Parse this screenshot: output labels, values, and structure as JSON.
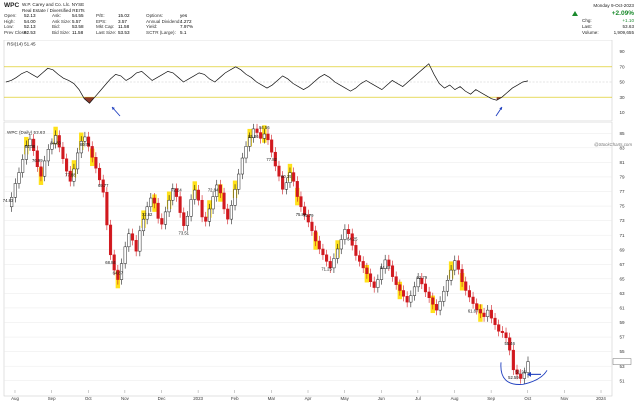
{
  "header": {
    "ticker": "WPC",
    "company": "W.P. Carey and Co. Llc. NYSE",
    "sector": "Real Estate / Diversified REITs",
    "date": "Monday  9-Oct-2023",
    "quote_cols": [
      [
        [
          "Open:",
          "52.13"
        ],
        [
          "High:",
          "54.00"
        ],
        [
          "Low:",
          "52.13"
        ],
        [
          "Prev Close:",
          "52.53"
        ]
      ],
      [
        [
          "Ask:",
          "54.55"
        ],
        [
          "Ask Size:",
          "5.57"
        ],
        [
          "Bid:",
          "53.58"
        ],
        [
          "Bid Size:",
          "11.58"
        ]
      ],
      [
        [
          "P/E:",
          "15.02"
        ],
        [
          "EPS:",
          "3.57"
        ],
        [
          "Mkt Cap:",
          "11.58"
        ],
        [
          "Last Size:",
          "53.53"
        ]
      ],
      [
        [
          "Options:",
          "yes"
        ],
        [
          "Annual Dividend:",
          "4.272"
        ],
        [
          "Yield:",
          "7.97%"
        ],
        [
          "SCTR (Large):",
          "5.1"
        ]
      ]
    ],
    "change": {
      "pct": "+2.09%",
      "rows": [
        [
          "Chg:",
          "+1.10"
        ],
        [
          "Last:",
          "53.63"
        ],
        [
          "Volume:",
          "1,909,655"
        ]
      ]
    }
  },
  "watermark": "@StockCharts.com",
  "colors": {
    "up": "#1a8a2c",
    "down": "#d1181e",
    "rsi_line": "#111111",
    "overbought": "#d9c400",
    "oversold_fill": "#8b3a2c",
    "arrow": "#1f3fbf",
    "highlight": "#ffe11a",
    "gridline": "#e4e4e4"
  },
  "chart_data": [
    {
      "type": "line",
      "title": "RSI(14) 51.45",
      "ylim": [
        0,
        100
      ],
      "ticks": [
        "90",
        "70",
        "50",
        "30",
        "10"
      ],
      "tick_values": [
        90,
        70,
        50,
        30,
        10
      ],
      "levels": [
        70,
        50,
        30
      ],
      "x": [
        0,
        3,
        6,
        9,
        12,
        15,
        18,
        21,
        24,
        27,
        30,
        33,
        36,
        39,
        42,
        45,
        48,
        51,
        54,
        57,
        60,
        63,
        66,
        69,
        72,
        75,
        78,
        81,
        84,
        87,
        90,
        93,
        96,
        99,
        102,
        105,
        108,
        111,
        114,
        117,
        120,
        123,
        126,
        129,
        132,
        135,
        138,
        141,
        144,
        147,
        150,
        153,
        156,
        159,
        162,
        165,
        168,
        171,
        174,
        177,
        180,
        183,
        186,
        189,
        192,
        195,
        198,
        201,
        204,
        207,
        210,
        213,
        216,
        219,
        222,
        225,
        228,
        231,
        234,
        237,
        240,
        243,
        246,
        249,
        252,
        255,
        258,
        261,
        264,
        267,
        270,
        273,
        276,
        279,
        282,
        285,
        288,
        291,
        294,
        297,
        300
      ],
      "values": [
        50,
        52,
        56,
        61,
        64,
        60,
        56,
        62,
        68,
        66,
        60,
        55,
        52,
        48,
        40,
        28,
        22,
        30,
        38,
        46,
        54,
        60,
        58,
        52,
        56,
        62,
        64,
        58,
        52,
        56,
        60,
        64,
        62,
        56,
        50,
        54,
        58,
        62,
        60,
        54,
        50,
        56,
        62,
        66,
        70,
        66,
        60,
        56,
        50,
        46,
        42,
        46,
        52,
        58,
        54,
        48,
        44,
        40,
        44,
        50,
        56,
        60,
        56,
        50,
        46,
        42,
        38,
        42,
        48,
        52,
        48,
        44,
        40,
        46,
        52,
        48,
        44,
        50,
        56,
        62,
        68,
        74,
        60,
        48,
        42,
        46,
        40,
        44,
        38,
        34,
        40,
        36,
        32,
        28,
        26,
        30,
        36,
        42,
        46,
        50,
        51.45
      ],
      "oversold_zones": [
        [
          45,
          51
        ],
        [
          282,
          300
        ]
      ]
    },
    {
      "type": "candlestick",
      "title": "WPC (Daily) 53.63",
      "ylim": [
        50,
        86
      ],
      "ticks": [
        "85",
        "83",
        "81",
        "79",
        "77",
        "75",
        "73",
        "71",
        "69",
        "67",
        "65",
        "63",
        "61",
        "59",
        "57",
        "55",
        "53",
        "51"
      ],
      "tick_values": [
        85,
        83,
        81,
        79,
        77,
        75,
        73,
        71,
        69,
        67,
        65,
        63,
        61,
        59,
        57,
        55,
        53,
        51
      ],
      "x_labels": [
        "Aug",
        "Sep",
        "Oct",
        "Nov",
        "Dec",
        "2023",
        "Feb",
        "Mar",
        "Apr",
        "May",
        "Jun",
        "Jul",
        "Aug",
        "Sep",
        "Oct",
        "Nov",
        "2024"
      ],
      "x_label_pos": [
        6,
        26,
        46,
        66,
        86,
        106,
        126,
        146,
        166,
        186,
        206,
        226,
        246,
        266,
        286,
        306,
        326
      ],
      "closes": [
        74.9,
        76.2,
        78.1,
        79.6,
        81.4,
        83.3,
        84.2,
        82.6,
        80.4,
        79.1,
        81.2,
        82.8,
        83.6,
        84.7,
        83.1,
        81.5,
        79.8,
        78.4,
        80.1,
        82.3,
        83.9,
        84.5,
        83.2,
        81.7,
        80.2,
        78.6,
        76.9,
        72.4,
        68.3,
        66.2,
        64.9,
        67.1,
        69.4,
        71.2,
        70.3,
        68.8,
        71.6,
        73.2,
        74.9,
        76.1,
        75.4,
        73.3,
        72.5,
        74.2,
        75.8,
        77.4,
        76.3,
        74.1,
        72.3,
        73.6,
        75.9,
        77.2,
        75.8,
        73.5,
        72.9,
        74.6,
        76.3,
        77.9,
        76.8,
        74.6,
        73.2,
        75.1,
        77.3,
        79.4,
        81.6,
        83.2,
        84.4,
        85.6,
        85.1,
        84.3,
        84.9,
        84.1,
        82.4,
        80.5,
        79.1,
        77.3,
        78.2,
        79.6,
        78.4,
        76.3,
        74.9,
        73.8,
        72.8,
        71.6,
        70.2,
        69.1,
        68.3,
        67.4,
        66.5,
        67.8,
        69.1,
        70.4,
        71.8,
        71.2,
        69.6,
        68.2,
        67.4,
        66.5,
        65.7,
        64.6,
        63.8,
        64.9,
        66.4,
        67.6,
        66.8,
        65.3,
        64.2,
        63.4,
        62.6,
        61.8,
        62.7,
        63.9,
        65.1,
        64.3,
        63.2,
        62.4,
        61.5,
        60.7,
        61.9,
        63.3,
        64.8,
        66.2,
        67.5,
        66.3,
        64.6,
        63.4,
        62.5,
        61.6,
        60.8,
        60.3,
        59.8,
        60.7,
        59.6,
        58.7,
        57.8,
        57.6,
        56.9,
        55.2,
        52.5,
        51.9,
        51.3,
        52.1,
        53.63
      ],
      "price_labels": [
        {
          "i": 0,
          "text": "74.83"
        },
        {
          "i": 6,
          "text": "84.38"
        },
        {
          "i": 8,
          "text": "76.99"
        },
        {
          "i": 13,
          "text": "84.83"
        },
        {
          "i": 17,
          "text": "77.88"
        },
        {
          "i": 21,
          "text": "80.76"
        },
        {
          "i": 26,
          "text": "69.77"
        },
        {
          "i": 28,
          "text": "68.84"
        },
        {
          "i": 30,
          "text": "64.87"
        },
        {
          "i": 38,
          "text": "72.62"
        },
        {
          "i": 46,
          "text": "72.24"
        },
        {
          "i": 48,
          "text": "73.51"
        },
        {
          "i": 56,
          "text": "72.84"
        },
        {
          "i": 67,
          "text": "85.86"
        },
        {
          "i": 70,
          "text": "84.56"
        },
        {
          "i": 72,
          "text": "77.82"
        },
        {
          "i": 76,
          "text": "80.25"
        },
        {
          "i": 80,
          "text": "75.82"
        },
        {
          "i": 82,
          "text": "72.79"
        },
        {
          "i": 87,
          "text": "71.25"
        },
        {
          "i": 94,
          "text": "64.25"
        },
        {
          "i": 103,
          "text": "64.42"
        },
        {
          "i": 113,
          "text": "62.79"
        },
        {
          "i": 127,
          "text": "61.87"
        },
        {
          "i": 137,
          "text": "55.46"
        },
        {
          "i": 138,
          "text": "52.59"
        },
        {
          "i": 140,
          "text": "51.26"
        }
      ],
      "highlights": [
        5,
        9,
        13,
        18,
        20,
        23,
        30,
        37,
        40,
        44,
        51,
        55,
        58,
        62,
        66,
        70,
        77,
        79,
        84,
        90,
        98,
        107,
        116,
        121,
        124,
        129
      ]
    }
  ]
}
